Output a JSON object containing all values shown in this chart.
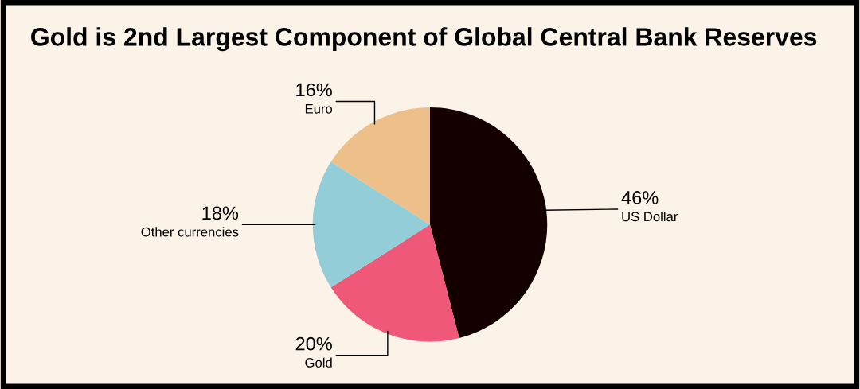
{
  "chart_data": {
    "type": "pie",
    "title": "Gold is 2nd Largest Component of Global Central Bank Reserves",
    "categories": [
      "US Dollar",
      "Gold",
      "Other currencies",
      "Euro"
    ],
    "values": [
      46,
      20,
      18,
      16
    ],
    "value_labels": [
      "46%",
      "20%",
      "18%",
      "16%"
    ],
    "colors": [
      "#140000",
      "#f0587a",
      "#92cdd8",
      "#ecc088"
    ],
    "legend": false
  }
}
